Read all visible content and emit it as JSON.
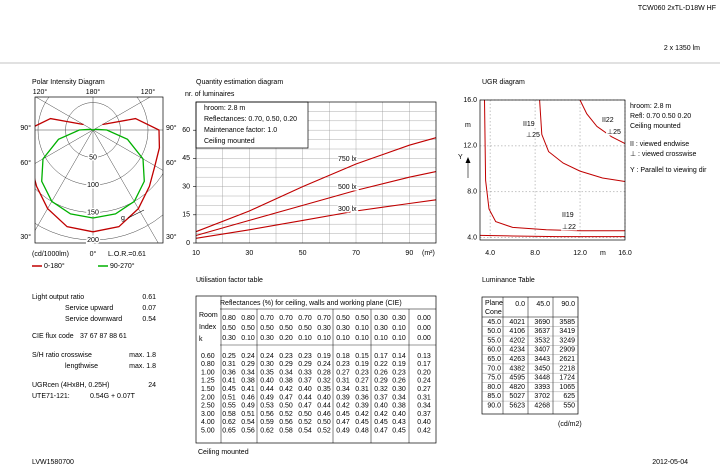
{
  "header": {
    "title": "TCW060 2xTL-D18W HF",
    "flux": "2 x 1350 lm"
  },
  "chart_data": [
    {
      "type": "polar",
      "title": "Polar Intensity Diagram",
      "unit": "(cd/1000lm)",
      "note": "L.O.R.=0.61",
      "direction_label": "g",
      "angles": [
        0,
        15,
        30,
        45,
        60,
        75,
        90,
        105,
        120
      ],
      "series": [
        {
          "name": "0-180°",
          "color": "#c00000",
          "values": [
            185,
            182,
            165,
            145,
            130,
            125,
            120,
            80,
            20
          ]
        },
        {
          "name": "90-270°",
          "color": "#00b000",
          "values": [
            160,
            158,
            150,
            132,
            105,
            65,
            25,
            5,
            0
          ]
        }
      ],
      "rlim": [
        0,
        200
      ],
      "rticks": [
        50,
        100,
        150,
        200
      ],
      "angle_ticks": [
        {
          "value": -120,
          "label": "120°"
        },
        {
          "value": 180,
          "label": "180°"
        },
        {
          "value": 120,
          "label": "120°"
        },
        {
          "value": -90,
          "label": "90°"
        },
        {
          "value": 90,
          "label": "90°"
        },
        {
          "value": -60,
          "label": "60°"
        },
        {
          "value": 60,
          "label": "60°"
        },
        {
          "value": -30,
          "label": "30°"
        },
        {
          "value": 0,
          "label": "0°"
        },
        {
          "value": 30,
          "label": "30°"
        }
      ]
    },
    {
      "type": "line",
      "title": "Quantity estimation diagram",
      "y_label": "nr. of luminaires",
      "x_unit": "(m²)",
      "notes": [
        "hroom: 2.8 m",
        "Reflectances: 0.70, 0.50, 0.20",
        "Maintenance factor: 1.0",
        "Ceiling mounted"
      ],
      "series": [
        {
          "name": "750 lx",
          "color": "#c00000",
          "x": [
            10,
            30,
            50,
            70,
            90,
            100
          ],
          "values": [
            6,
            17,
            30,
            42,
            52,
            56
          ]
        },
        {
          "name": "500 lx",
          "color": "#c00000",
          "x": [
            10,
            30,
            50,
            70,
            90,
            100
          ],
          "values": [
            4,
            12,
            20,
            28,
            35,
            38
          ]
        },
        {
          "name": "300 lx",
          "color": "#c00000",
          "x": [
            10,
            30,
            50,
            70,
            90,
            100
          ],
          "values": [
            2.5,
            7,
            12,
            17,
            21,
            23
          ]
        }
      ],
      "xlim": [
        10,
        100
      ],
      "ylim": [
        0,
        75
      ],
      "xticks": [
        10,
        30,
        50,
        70,
        90
      ],
      "yticks": [
        0,
        15,
        30,
        45,
        60
      ],
      "minor_xticks": [
        20,
        30,
        40,
        50,
        60,
        70,
        80,
        90
      ],
      "minor_yticks": [
        5,
        10,
        15,
        20,
        25,
        30,
        35,
        40,
        45,
        50,
        55,
        60,
        65,
        70
      ],
      "grid": true
    },
    {
      "type": "line",
      "title": "UGR diagram",
      "x_label": "m",
      "y_label": "m",
      "direction_label": "Y",
      "annotations": [
        "II19",
        "⊥25",
        "II22",
        "⊥25",
        "II19",
        "⊥22"
      ],
      "notes": [
        "hroom: 2.8 m",
        "Refl: 0.70 0.50 0.20",
        "Ceiling mounted",
        "II : viewed endwise",
        "⊥ : viewed crosswise",
        "Y : Parallel to viewing dir"
      ],
      "series": [
        {
          "color": "#c00000",
          "x": [
            8.4,
            8.6,
            9.2,
            10.5,
            12,
            14,
            16
          ],
          "values": [
            16,
            13,
            11.5,
            10.5,
            9.8,
            9.2,
            8.9
          ]
        },
        {
          "color": "#c00000",
          "x": [
            12,
            12.6,
            13.5,
            14.8,
            16
          ],
          "values": [
            16,
            14.8,
            13.7,
            12.8,
            12.2
          ]
        },
        {
          "color": "#c00000",
          "x": [
            3.5,
            3.6,
            3.9,
            4.5,
            6,
            9,
            12,
            16
          ],
          "values": [
            16,
            9,
            6.5,
            5.4,
            4.9,
            4.7,
            4.6,
            4.6
          ]
        },
        {
          "color": "#c00000",
          "x": [
            3.1,
            6,
            10,
            16
          ],
          "values": [
            4.2,
            4.15,
            4.1,
            4.1
          ]
        }
      ],
      "xlim": [
        3.1,
        16
      ],
      "ylim": [
        3.8,
        16
      ],
      "xticks": [
        {
          "value": 4,
          "label": "4.0"
        },
        {
          "value": 8,
          "label": "8.0"
        },
        {
          "value": 12,
          "label": "12.0"
        },
        {
          "value": 16,
          "label": "16.0"
        }
      ],
      "yticks": [
        {
          "value": 4,
          "label": "4.0"
        },
        {
          "value": 8,
          "label": "8.0"
        },
        {
          "value": 12,
          "label": "12.0"
        },
        {
          "value": 16,
          "label": "16.0"
        }
      ],
      "grid": true
    }
  ],
  "properties": [
    {
      "label": "Light output ratio",
      "value": "0.61"
    },
    {
      "label": "Service upward",
      "value": "0.07"
    },
    {
      "label": "Service downward",
      "value": "0.54"
    },
    {
      "label": "CIE flux code",
      "value": "37 67 87 88 61"
    },
    {
      "label": "S/H ratio crosswise",
      "value": "max. 1.8"
    },
    {
      "label": "lengthwise",
      "value": "max. 1.8"
    },
    {
      "label": "UGRcen (4Hx8H, 0.25H)",
      "value": "24"
    },
    {
      "label": "UTE71-121:",
      "value": "0.54G + 0.07T"
    }
  ],
  "utilisation_table": {
    "title": "Utilisation factor table",
    "header": "Reflectances (%) for ceiling, walls and working plane (CIE)",
    "row_header": [
      "Room",
      "Index",
      "k"
    ],
    "reflectances": [
      [
        "0.80",
        "0.80",
        "0.70",
        "0.70",
        "0.70",
        "0.70",
        "0.50",
        "0.50",
        "0.30",
        "0.30",
        "0.00"
      ],
      [
        "0.50",
        "0.50",
        "0.50",
        "0.50",
        "0.50",
        "0.30",
        "0.30",
        "0.10",
        "0.30",
        "0.10",
        "0.00"
      ],
      [
        "0.30",
        "0.10",
        "0.30",
        "0.20",
        "0.10",
        "0.10",
        "0.10",
        "0.10",
        "0.10",
        "0.10",
        "0.00"
      ]
    ],
    "rows": [
      {
        "k": "0.60",
        "values": [
          "0.25",
          "0.24",
          "0.24",
          "0.23",
          "0.23",
          "0.19",
          "0.18",
          "0.15",
          "0.17",
          "0.14",
          "0.13"
        ]
      },
      {
        "k": "0.80",
        "values": [
          "0.31",
          "0.29",
          "0.30",
          "0.29",
          "0.29",
          "0.24",
          "0.23",
          "0.19",
          "0.22",
          "0.19",
          "0.17"
        ]
      },
      {
        "k": "1.00",
        "values": [
          "0.36",
          "0.34",
          "0.35",
          "0.34",
          "0.33",
          "0.28",
          "0.27",
          "0.23",
          "0.26",
          "0.23",
          "0.20"
        ]
      },
      {
        "k": "1.25",
        "values": [
          "0.41",
          "0.38",
          "0.40",
          "0.38",
          "0.37",
          "0.32",
          "0.31",
          "0.27",
          "0.29",
          "0.26",
          "0.24"
        ]
      },
      {
        "k": "1.50",
        "values": [
          "0.45",
          "0.41",
          "0.44",
          "0.42",
          "0.40",
          "0.35",
          "0.34",
          "0.31",
          "0.32",
          "0.30",
          "0.27"
        ]
      },
      {
        "k": "2.00",
        "values": [
          "0.51",
          "0.46",
          "0.49",
          "0.47",
          "0.44",
          "0.40",
          "0.39",
          "0.36",
          "0.37",
          "0.34",
          "0.31"
        ]
      },
      {
        "k": "2.50",
        "values": [
          "0.55",
          "0.49",
          "0.53",
          "0.50",
          "0.47",
          "0.44",
          "0.42",
          "0.39",
          "0.40",
          "0.38",
          "0.34"
        ]
      },
      {
        "k": "3.00",
        "values": [
          "0.58",
          "0.51",
          "0.56",
          "0.52",
          "0.50",
          "0.46",
          "0.45",
          "0.42",
          "0.42",
          "0.40",
          "0.37"
        ]
      },
      {
        "k": "4.00",
        "values": [
          "0.62",
          "0.54",
          "0.59",
          "0.56",
          "0.52",
          "0.50",
          "0.47",
          "0.45",
          "0.45",
          "0.43",
          "0.40"
        ]
      },
      {
        "k": "5.00",
        "values": [
          "0.65",
          "0.56",
          "0.62",
          "0.58",
          "0.54",
          "0.52",
          "0.49",
          "0.48",
          "0.47",
          "0.45",
          "0.42"
        ]
      }
    ],
    "note": "Ceiling mounted"
  },
  "luminance_table": {
    "title": "Luminance Table",
    "header": [
      "Plane",
      "Cone"
    ],
    "columns": [
      "0.0",
      "45.0",
      "90.0"
    ],
    "rows": [
      {
        "cone": "45.0",
        "values": [
          4021,
          3690,
          3585
        ]
      },
      {
        "cone": "50.0",
        "values": [
          4106,
          3637,
          3419
        ]
      },
      {
        "cone": "55.0",
        "values": [
          4202,
          3532,
          3249
        ]
      },
      {
        "cone": "60.0",
        "values": [
          4234,
          3407,
          2909
        ]
      },
      {
        "cone": "65.0",
        "values": [
          4263,
          3443,
          2621
        ]
      },
      {
        "cone": "70.0",
        "values": [
          4382,
          3450,
          2218
        ]
      },
      {
        "cone": "75.0",
        "values": [
          4595,
          3448,
          1724
        ]
      },
      {
        "cone": "80.0",
        "values": [
          4820,
          3393,
          1065
        ]
      },
      {
        "cone": "85.0",
        "values": [
          5027,
          3702,
          625
        ]
      },
      {
        "cone": "90.0",
        "values": [
          5623,
          4268,
          550
        ]
      }
    ],
    "unit": "(cd/m2)"
  },
  "footer": {
    "code": "LVW1580700",
    "date": "2012-05-04"
  }
}
